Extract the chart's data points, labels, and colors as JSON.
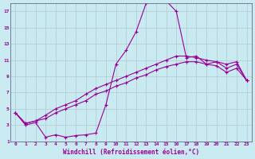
{
  "title": "",
  "xlabel": "Windchill (Refroidissement éolien,°C)",
  "background_color": "#c8eaf0",
  "grid_color": "#b0c8d0",
  "line_color": "#990099",
  "xlim": [
    -0.5,
    23.5
  ],
  "ylim": [
    1,
    18
  ],
  "xticks": [
    0,
    1,
    2,
    3,
    4,
    5,
    6,
    7,
    8,
    9,
    10,
    11,
    12,
    13,
    14,
    15,
    16,
    17,
    18,
    19,
    20,
    21,
    22,
    23
  ],
  "yticks": [
    1,
    3,
    5,
    7,
    9,
    11,
    13,
    15,
    17
  ],
  "curve1_x": [
    0,
    1,
    2,
    3,
    4,
    5,
    6,
    7,
    8,
    9,
    10,
    11,
    12,
    13,
    14,
    15,
    16,
    17,
    18,
    19,
    20,
    21,
    22,
    23
  ],
  "curve1_y": [
    4.5,
    3.0,
    3.3,
    1.5,
    1.8,
    1.5,
    1.7,
    1.8,
    2.0,
    5.5,
    10.5,
    12.2,
    14.5,
    18.0,
    18.5,
    18.3,
    17.0,
    11.3,
    11.5,
    10.5,
    10.8,
    10.5,
    10.8,
    8.5
  ],
  "curve2_x": [
    0,
    1,
    2,
    3,
    4,
    5,
    6,
    7,
    8,
    9,
    10,
    11,
    12,
    13,
    14,
    15,
    16,
    17,
    18,
    19,
    20,
    21,
    22,
    23
  ],
  "curve2_y": [
    4.5,
    3.2,
    3.5,
    4.2,
    5.0,
    5.5,
    6.0,
    6.8,
    7.5,
    8.0,
    8.5,
    9.0,
    9.5,
    10.0,
    10.5,
    11.0,
    11.5,
    11.5,
    11.3,
    11.0,
    10.8,
    10.0,
    10.5,
    8.5
  ],
  "curve3_x": [
    0,
    1,
    2,
    3,
    4,
    5,
    6,
    7,
    8,
    9,
    10,
    11,
    12,
    13,
    14,
    15,
    16,
    17,
    18,
    19,
    20,
    21,
    22,
    23
  ],
  "curve3_y": [
    4.5,
    3.2,
    3.5,
    3.8,
    4.5,
    5.0,
    5.5,
    6.0,
    6.8,
    7.2,
    7.8,
    8.2,
    8.8,
    9.2,
    9.8,
    10.2,
    10.5,
    10.8,
    10.8,
    10.5,
    10.3,
    9.5,
    10.0,
    8.5
  ]
}
